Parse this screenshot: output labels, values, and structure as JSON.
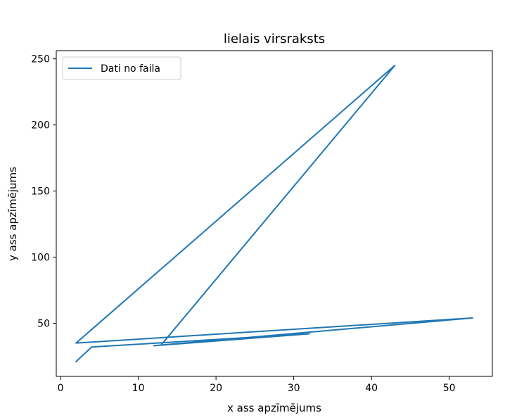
{
  "chart_data": {
    "type": "line",
    "title": "lielais virsraksts",
    "xlabel": "x ass apzīmējums",
    "ylabel": "y ass apzīmējums",
    "xlim": [
      -0.55,
      55.55
    ],
    "ylim": [
      9.8,
      256.2
    ],
    "xticks": [
      0,
      10,
      20,
      30,
      40,
      50
    ],
    "yticks": [
      50,
      100,
      150,
      200,
      250
    ],
    "grid": false,
    "legend_position": "top-left",
    "series": [
      {
        "name": "Dati no faila",
        "color": "#1f77b4",
        "x": [
          2,
          4,
          32,
          12,
          53,
          2,
          43,
          13
        ],
        "y": [
          21,
          32,
          42,
          33,
          54,
          35,
          245,
          34
        ]
      }
    ]
  }
}
